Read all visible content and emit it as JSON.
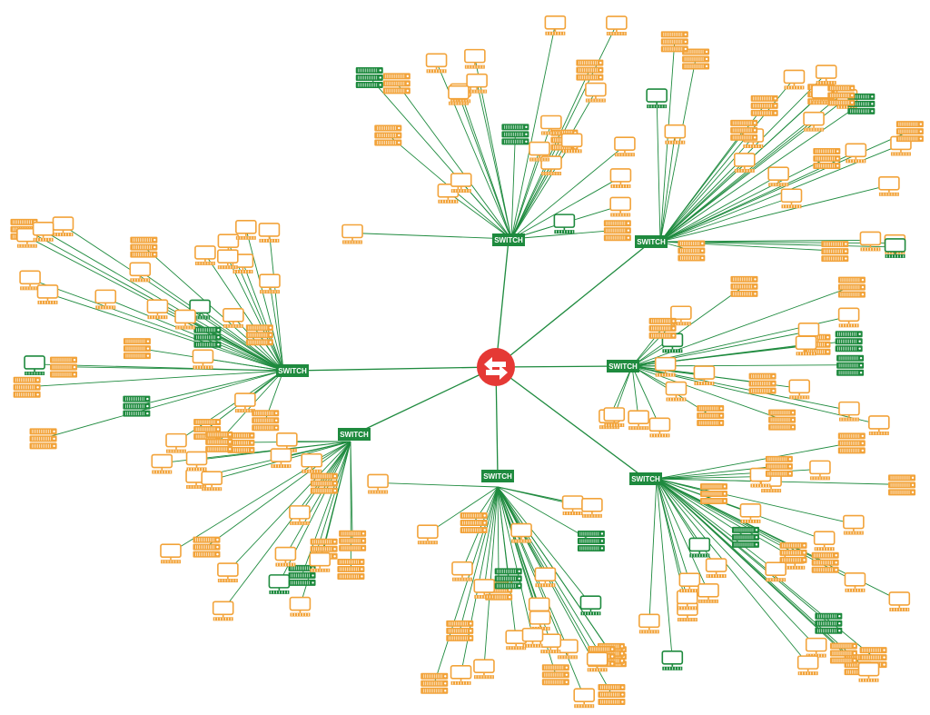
{
  "colors": {
    "link": "#1e8a3e",
    "switch": "#1e8a3e",
    "device_orange": "#f2a33a",
    "device_green": "#1e8a3e",
    "router": "#e53935",
    "background": "#ffffff"
  },
  "router": {
    "name": "router-icon",
    "icon": "bidirectional-arrows-icon"
  },
  "switches": [
    {
      "label": "SWITCH",
      "devices": [
        {
          "t": "m",
          "c": "o"
        },
        {
          "t": "m",
          "c": "o"
        },
        {
          "t": "s",
          "c": "o"
        },
        {
          "t": "m",
          "c": "o"
        },
        {
          "t": "m",
          "c": "o"
        },
        {
          "t": "m",
          "c": "o"
        },
        {
          "t": "s",
          "c": "o"
        },
        {
          "t": "m",
          "c": "o"
        },
        {
          "t": "m",
          "c": "o"
        },
        {
          "t": "m",
          "c": "o"
        },
        {
          "t": "m",
          "c": "o"
        },
        {
          "t": "s",
          "c": "o"
        },
        {
          "t": "m",
          "c": "o"
        },
        {
          "t": "m",
          "c": "o"
        },
        {
          "t": "s",
          "c": "o"
        },
        {
          "t": "m",
          "c": "o"
        },
        {
          "t": "m",
          "c": "o"
        },
        {
          "t": "s",
          "c": "o"
        },
        {
          "t": "m",
          "c": "o"
        },
        {
          "t": "m",
          "c": "o"
        },
        {
          "t": "m",
          "c": "g"
        },
        {
          "t": "s",
          "c": "g"
        },
        {
          "t": "s",
          "c": "g"
        },
        {
          "t": "m",
          "c": "o"
        },
        {
          "t": "m",
          "c": "o"
        },
        {
          "t": "m",
          "c": "o"
        }
      ]
    },
    {
      "label": "SWITCH",
      "devices": [
        {
          "t": "s",
          "c": "o"
        },
        {
          "t": "m",
          "c": "o"
        },
        {
          "t": "s",
          "c": "o"
        },
        {
          "t": "m",
          "c": "o"
        },
        {
          "t": "m",
          "c": "o"
        },
        {
          "t": "s",
          "c": "o"
        },
        {
          "t": "m",
          "c": "o"
        },
        {
          "t": "m",
          "c": "o"
        },
        {
          "t": "s",
          "c": "o"
        },
        {
          "t": "m",
          "c": "o"
        },
        {
          "t": "s",
          "c": "o"
        },
        {
          "t": "m",
          "c": "o"
        },
        {
          "t": "m",
          "c": "o"
        },
        {
          "t": "s",
          "c": "o"
        },
        {
          "t": "m",
          "c": "o"
        },
        {
          "t": "m",
          "c": "o"
        },
        {
          "t": "s",
          "c": "o"
        },
        {
          "t": "m",
          "c": "o"
        },
        {
          "t": "m",
          "c": "o"
        },
        {
          "t": "s",
          "c": "o"
        },
        {
          "t": "m",
          "c": "o"
        },
        {
          "t": "m",
          "c": "g"
        },
        {
          "t": "s",
          "c": "g"
        },
        {
          "t": "m",
          "c": "g"
        },
        {
          "t": "s",
          "c": "o"
        },
        {
          "t": "m",
          "c": "o"
        },
        {
          "t": "m",
          "c": "o"
        },
        {
          "t": "s",
          "c": "o"
        }
      ]
    },
    {
      "label": "SWITCH",
      "devices": [
        {
          "t": "m",
          "c": "o"
        },
        {
          "t": "s",
          "c": "o"
        },
        {
          "t": "m",
          "c": "o"
        },
        {
          "t": "s",
          "c": "o"
        },
        {
          "t": "m",
          "c": "o"
        },
        {
          "t": "m",
          "c": "o"
        },
        {
          "t": "s",
          "c": "o"
        },
        {
          "t": "m",
          "c": "o"
        },
        {
          "t": "m",
          "c": "o"
        },
        {
          "t": "m",
          "c": "o"
        },
        {
          "t": "s",
          "c": "o"
        },
        {
          "t": "m",
          "c": "o"
        },
        {
          "t": "s",
          "c": "o"
        },
        {
          "t": "m",
          "c": "o"
        },
        {
          "t": "m",
          "c": "o"
        },
        {
          "t": "s",
          "c": "o"
        },
        {
          "t": "m",
          "c": "o"
        },
        {
          "t": "s",
          "c": "g"
        },
        {
          "t": "m",
          "c": "g"
        },
        {
          "t": "s",
          "c": "g"
        },
        {
          "t": "m",
          "c": "o"
        },
        {
          "t": "m",
          "c": "o"
        },
        {
          "t": "m",
          "c": "o"
        },
        {
          "t": "s",
          "c": "o"
        }
      ]
    },
    {
      "label": "SWITCH",
      "devices": [
        {
          "t": "m",
          "c": "o"
        },
        {
          "t": "s",
          "c": "o"
        },
        {
          "t": "m",
          "c": "o"
        },
        {
          "t": "m",
          "c": "o"
        },
        {
          "t": "s",
          "c": "o"
        },
        {
          "t": "m",
          "c": "o"
        },
        {
          "t": "m",
          "c": "o"
        },
        {
          "t": "s",
          "c": "o"
        },
        {
          "t": "m",
          "c": "o"
        },
        {
          "t": "m",
          "c": "o"
        },
        {
          "t": "s",
          "c": "o"
        },
        {
          "t": "m",
          "c": "o"
        },
        {
          "t": "m",
          "c": "o"
        },
        {
          "t": "s",
          "c": "o"
        },
        {
          "t": "m",
          "c": "o"
        },
        {
          "t": "m",
          "c": "o"
        },
        {
          "t": "s",
          "c": "o"
        },
        {
          "t": "m",
          "c": "o"
        },
        {
          "t": "m",
          "c": "o"
        },
        {
          "t": "s",
          "c": "o"
        },
        {
          "t": "m",
          "c": "o"
        },
        {
          "t": "m",
          "c": "o"
        },
        {
          "t": "m",
          "c": "g"
        },
        {
          "t": "s",
          "c": "g"
        },
        {
          "t": "s",
          "c": "g"
        },
        {
          "t": "m",
          "c": "o"
        },
        {
          "t": "m",
          "c": "g"
        },
        {
          "t": "s",
          "c": "o"
        },
        {
          "t": "m",
          "c": "o"
        },
        {
          "t": "m",
          "c": "o"
        },
        {
          "t": "s",
          "c": "o"
        },
        {
          "t": "m",
          "c": "o"
        }
      ]
    },
    {
      "label": "SWITCH",
      "devices": [
        {
          "t": "m",
          "c": "o"
        },
        {
          "t": "s",
          "c": "o"
        },
        {
          "t": "m",
          "c": "o"
        },
        {
          "t": "m",
          "c": "o"
        },
        {
          "t": "s",
          "c": "o"
        },
        {
          "t": "m",
          "c": "o"
        },
        {
          "t": "m",
          "c": "o"
        },
        {
          "t": "s",
          "c": "o"
        },
        {
          "t": "m",
          "c": "o"
        },
        {
          "t": "m",
          "c": "o"
        },
        {
          "t": "s",
          "c": "o"
        },
        {
          "t": "m",
          "c": "o"
        },
        {
          "t": "m",
          "c": "o"
        },
        {
          "t": "s",
          "c": "o"
        },
        {
          "t": "m",
          "c": "o"
        },
        {
          "t": "m",
          "c": "o"
        },
        {
          "t": "s",
          "c": "o"
        },
        {
          "t": "m",
          "c": "o"
        },
        {
          "t": "m",
          "c": "o"
        },
        {
          "t": "s",
          "c": "o"
        },
        {
          "t": "m",
          "c": "o"
        },
        {
          "t": "s",
          "c": "g"
        },
        {
          "t": "m",
          "c": "g"
        },
        {
          "t": "s",
          "c": "g"
        },
        {
          "t": "m",
          "c": "o"
        },
        {
          "t": "s",
          "c": "o"
        },
        {
          "t": "m",
          "c": "o"
        },
        {
          "t": "m",
          "c": "o"
        },
        {
          "t": "s",
          "c": "o"
        },
        {
          "t": "m",
          "c": "o"
        }
      ]
    },
    {
      "label": "SWITCH",
      "devices": [
        {
          "t": "m",
          "c": "o"
        },
        {
          "t": "m",
          "c": "o"
        },
        {
          "t": "s",
          "c": "o"
        },
        {
          "t": "m",
          "c": "o"
        },
        {
          "t": "m",
          "c": "o"
        },
        {
          "t": "s",
          "c": "o"
        },
        {
          "t": "m",
          "c": "o"
        },
        {
          "t": "m",
          "c": "o"
        },
        {
          "t": "s",
          "c": "o"
        },
        {
          "t": "m",
          "c": "o"
        },
        {
          "t": "m",
          "c": "o"
        },
        {
          "t": "s",
          "c": "o"
        },
        {
          "t": "m",
          "c": "g"
        },
        {
          "t": "s",
          "c": "g"
        },
        {
          "t": "m",
          "c": "o"
        },
        {
          "t": "m",
          "c": "o"
        },
        {
          "t": "s",
          "c": "o"
        },
        {
          "t": "m",
          "c": "o"
        },
        {
          "t": "m",
          "c": "o"
        },
        {
          "t": "s",
          "c": "o"
        },
        {
          "t": "m",
          "c": "o"
        },
        {
          "t": "m",
          "c": "o"
        }
      ]
    },
    {
      "label": "SWITCH",
      "devices": [
        {
          "t": "m",
          "c": "o"
        },
        {
          "t": "s",
          "c": "o"
        },
        {
          "t": "m",
          "c": "o"
        },
        {
          "t": "m",
          "c": "o"
        },
        {
          "t": "s",
          "c": "o"
        },
        {
          "t": "m",
          "c": "o"
        },
        {
          "t": "m",
          "c": "o"
        },
        {
          "t": "s",
          "c": "o"
        },
        {
          "t": "m",
          "c": "o"
        },
        {
          "t": "m",
          "c": "o"
        },
        {
          "t": "s",
          "c": "o"
        },
        {
          "t": "m",
          "c": "o"
        },
        {
          "t": "m",
          "c": "o"
        },
        {
          "t": "s",
          "c": "o"
        },
        {
          "t": "m",
          "c": "o"
        },
        {
          "t": "m",
          "c": "o"
        },
        {
          "t": "s",
          "c": "o"
        },
        {
          "t": "m",
          "c": "g"
        },
        {
          "t": "s",
          "c": "g"
        },
        {
          "t": "s",
          "c": "g"
        },
        {
          "t": "m",
          "c": "g"
        },
        {
          "t": "m",
          "c": "o"
        },
        {
          "t": "s",
          "c": "o"
        },
        {
          "t": "m",
          "c": "o"
        },
        {
          "t": "m",
          "c": "o"
        },
        {
          "t": "s",
          "c": "o"
        },
        {
          "t": "m",
          "c": "o"
        },
        {
          "t": "m",
          "c": "o"
        },
        {
          "t": "s",
          "c": "o"
        },
        {
          "t": "m",
          "c": "o"
        },
        {
          "t": "m",
          "c": "o"
        },
        {
          "t": "s",
          "c": "o"
        },
        {
          "t": "m",
          "c": "o"
        },
        {
          "t": "m",
          "c": "o"
        }
      ]
    }
  ]
}
